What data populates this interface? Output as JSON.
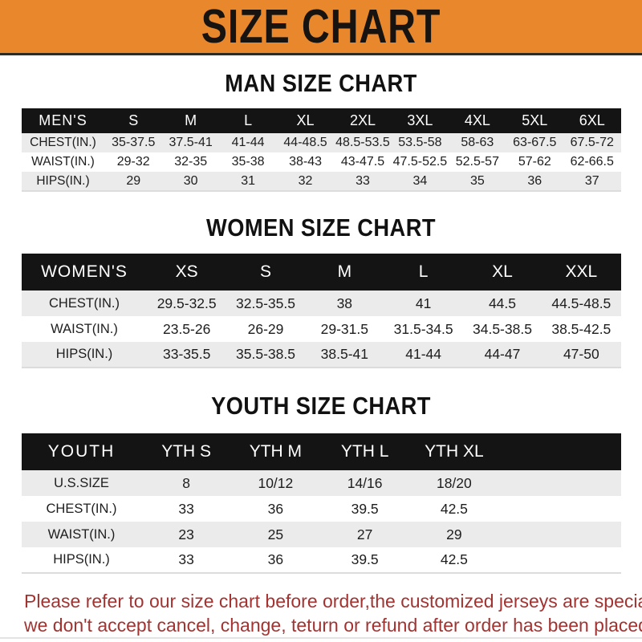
{
  "banner": {
    "title": "SIZE CHART"
  },
  "colors": {
    "banner_orange": "#E8872B",
    "header_bar_black": "#141414",
    "row_shade_gray": "#EBEBEB",
    "footer_red": "#A33331"
  },
  "sections": [
    {
      "id": "men",
      "title": "MAN SIZE CHART",
      "table": {
        "header_label": "MEN'S",
        "sizes": [
          "S",
          "M",
          "L",
          "XL",
          "2XL",
          "3XL",
          "4XL",
          "5XL",
          "6XL"
        ],
        "rows": [
          {
            "label": "CHEST(IN.)",
            "values": [
              "35-37.5",
              "37.5-41",
              "41-44",
              "44-48.5",
              "48.5-53.5",
              "53.5-58",
              "58-63",
              "63-67.5",
              "67.5-72"
            ]
          },
          {
            "label": "WAIST(IN.)",
            "values": [
              "29-32",
              "32-35",
              "35-38",
              "38-43",
              "43-47.5",
              "47.5-52.5",
              "52.5-57",
              "57-62",
              "62-66.5"
            ]
          },
          {
            "label": "HIPS(IN.)",
            "values": [
              "29",
              "30",
              "31",
              "32",
              "33",
              "34",
              "35",
              "36",
              "37"
            ]
          }
        ]
      }
    },
    {
      "id": "women",
      "title": "WOMEN SIZE CHART",
      "table": {
        "header_label": "WOMEN'S",
        "sizes": [
          "XS",
          "S",
          "M",
          "L",
          "XL",
          "XXL"
        ],
        "rows": [
          {
            "label": "CHEST(IN.)",
            "values": [
              "29.5-32.5",
              "32.5-35.5",
              "38",
              "41",
              "44.5",
              "44.5-48.5"
            ]
          },
          {
            "label": "WAIST(IN.)",
            "values": [
              "23.5-26",
              "26-29",
              "29-31.5",
              "31.5-34.5",
              "34.5-38.5",
              "38.5-42.5"
            ]
          },
          {
            "label": "HIPS(IN.)",
            "values": [
              "33-35.5",
              "35.5-38.5",
              "38.5-41",
              "41-44",
              "44-47",
              "47-50"
            ]
          }
        ]
      }
    },
    {
      "id": "youth",
      "title": "YOUTH SIZE CHART",
      "table": {
        "header_label": "YOUTH",
        "sizes": [
          "YTH S",
          "YTH M",
          "YTH L",
          "YTH XL"
        ],
        "trailing_blank_column": true,
        "rows": [
          {
            "label": "U.S.SIZE",
            "values": [
              "8",
              "10/12",
              "14/16",
              "18/20"
            ]
          },
          {
            "label": "CHEST(IN.)",
            "values": [
              "33",
              "36",
              "39.5",
              "42.5"
            ]
          },
          {
            "label": "WAIST(IN.)",
            "values": [
              "23",
              "25",
              "27",
              "29"
            ]
          },
          {
            "label": "HIPS(IN.)",
            "values": [
              "33",
              "36",
              "39.5",
              "42.5"
            ]
          }
        ]
      }
    }
  ],
  "footer": {
    "lines": [
      "Please refer to our size chart before order,the customized jerseys are special products,",
      "we don't accept cancel, change, teturn or refund after order has been placed!"
    ]
  }
}
